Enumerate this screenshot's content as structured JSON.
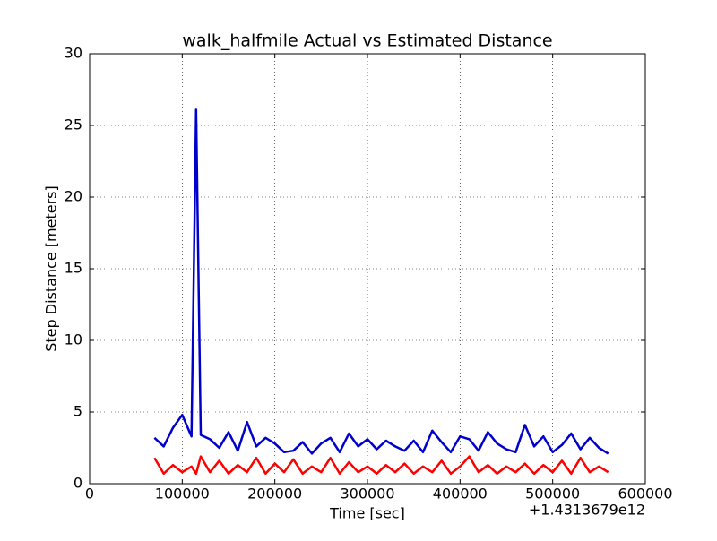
{
  "chart_data": {
    "type": "line",
    "title": "walk_halfmile Actual vs Estimated Distance",
    "xlabel": "Time [sec]",
    "ylabel": "Step Distance [meters]",
    "x_offset_label": "+1.4313679e12",
    "x": [
      70000,
      80000,
      90000,
      100000,
      110000,
      115000,
      120000,
      130000,
      140000,
      150000,
      160000,
      170000,
      180000,
      190000,
      200000,
      210000,
      220000,
      230000,
      240000,
      250000,
      260000,
      270000,
      280000,
      290000,
      300000,
      310000,
      320000,
      330000,
      340000,
      350000,
      360000,
      370000,
      380000,
      390000,
      400000,
      410000,
      420000,
      430000,
      440000,
      450000,
      460000,
      470000,
      480000,
      490000,
      500000,
      510000,
      520000,
      530000,
      540000,
      550000,
      560000
    ],
    "series": [
      {
        "color": "#0000cc",
        "values": [
          3.2,
          2.6,
          3.9,
          4.8,
          3.3,
          26.1,
          3.4,
          3.1,
          2.5,
          3.6,
          2.3,
          4.3,
          2.6,
          3.2,
          2.8,
          2.2,
          2.3,
          2.9,
          2.1,
          2.8,
          3.2,
          2.2,
          3.5,
          2.6,
          3.1,
          2.4,
          3.0,
          2.6,
          2.3,
          3.0,
          2.2,
          3.7,
          2.9,
          2.2,
          3.3,
          3.1,
          2.3,
          3.6,
          2.8,
          2.4,
          2.2,
          4.1,
          2.6,
          3.3,
          2.2,
          2.7,
          3.5,
          2.4,
          3.2,
          2.5,
          2.1
        ]
      },
      {
        "color": "#ff0000",
        "values": [
          1.8,
          0.7,
          1.3,
          0.8,
          1.2,
          0.7,
          1.9,
          0.8,
          1.6,
          0.7,
          1.3,
          0.8,
          1.8,
          0.7,
          1.4,
          0.8,
          1.7,
          0.7,
          1.2,
          0.8,
          1.8,
          0.7,
          1.5,
          0.8,
          1.2,
          0.7,
          1.3,
          0.8,
          1.4,
          0.7,
          1.2,
          0.8,
          1.6,
          0.7,
          1.2,
          1.9,
          0.8,
          1.3,
          0.7,
          1.2,
          0.8,
          1.4,
          0.7,
          1.3,
          0.8,
          1.6,
          0.7,
          1.8,
          0.8,
          1.2,
          0.8
        ]
      }
    ],
    "xlim": [
      0,
      600000
    ],
    "xticks": [
      0,
      100000,
      200000,
      300000,
      400000,
      500000,
      600000
    ],
    "ylim": [
      0,
      30
    ],
    "yticks": [
      0,
      5,
      10,
      15,
      20,
      25,
      30
    ],
    "grid": true
  }
}
